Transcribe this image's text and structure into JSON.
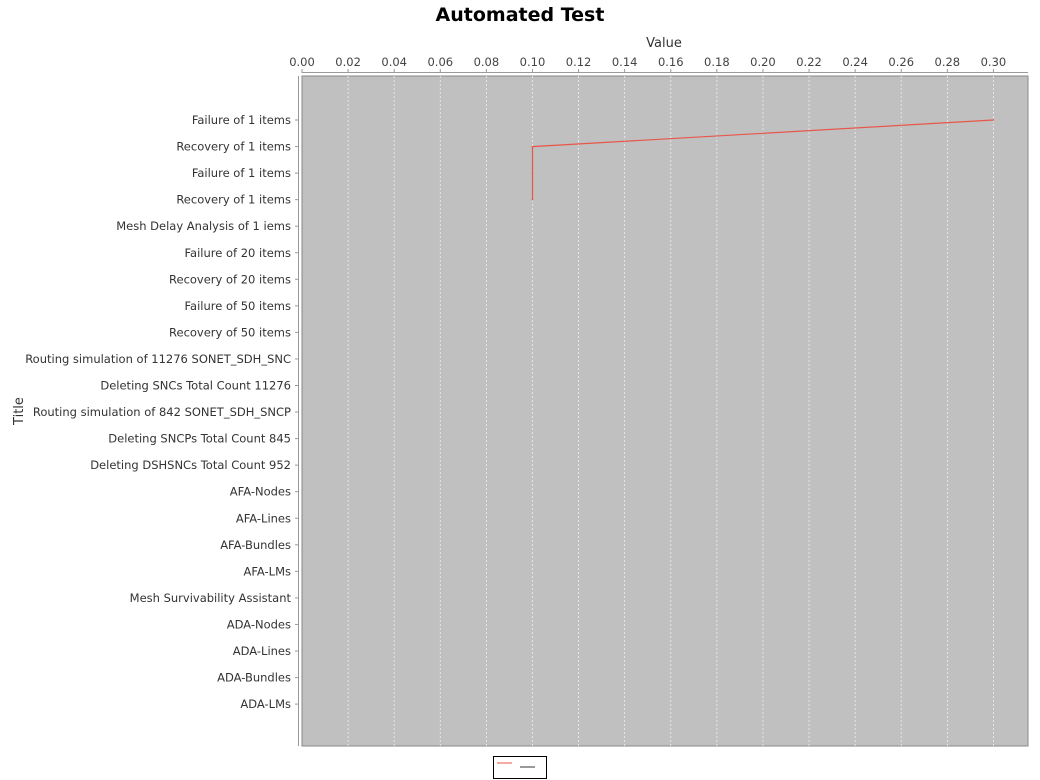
{
  "chart_data": {
    "type": "line",
    "title": "Automated Test",
    "xlabel": "Value",
    "ylabel": "Title",
    "x_axis_position": "top",
    "orientation": "horizontal",
    "xlim": [
      0,
      0.315
    ],
    "x_ticks": [
      "0.00",
      "0.02",
      "0.04",
      "0.06",
      "0.08",
      "0.10",
      "0.12",
      "0.14",
      "0.16",
      "0.18",
      "0.20",
      "0.22",
      "0.24",
      "0.26",
      "0.28",
      "0.30"
    ],
    "categories": [
      "Failure of 1 items",
      "Recovery of 1 items",
      "Failure of 1 items",
      "Recovery of 1 items",
      "Mesh Delay Analysis of 1 iems",
      "Failure of 20 items",
      "Recovery of 20 items",
      "Failure of 50 items",
      "Recovery of 50 items",
      "Routing simulation of 11276 SONET_SDH_SNC",
      "Deleting SNCs Total Count 11276",
      "Routing simulation of 842 SONET_SDH_SNCP",
      "Deleting SNCPs Total Count 845",
      "Deleting DSHSNCs Total Count 952",
      "AFA-Nodes",
      "AFA-Lines",
      "AFA-Bundles",
      "AFA-LMs",
      "Mesh Survivability Assistant",
      "ADA-Nodes",
      "ADA-Lines",
      "ADA-Bundles",
      "ADA-LMs"
    ],
    "series": [
      {
        "values": [
          0.3,
          0.1,
          0.1,
          0.1,
          null,
          null,
          null,
          null,
          null,
          null,
          null,
          null,
          null,
          null,
          null,
          null,
          null,
          null,
          null,
          null,
          null,
          null,
          null
        ],
        "color": "#e8564a"
      }
    ],
    "grid": "vertical dashed",
    "legend": "bottom",
    "plot_background": "#c0c0c0"
  }
}
